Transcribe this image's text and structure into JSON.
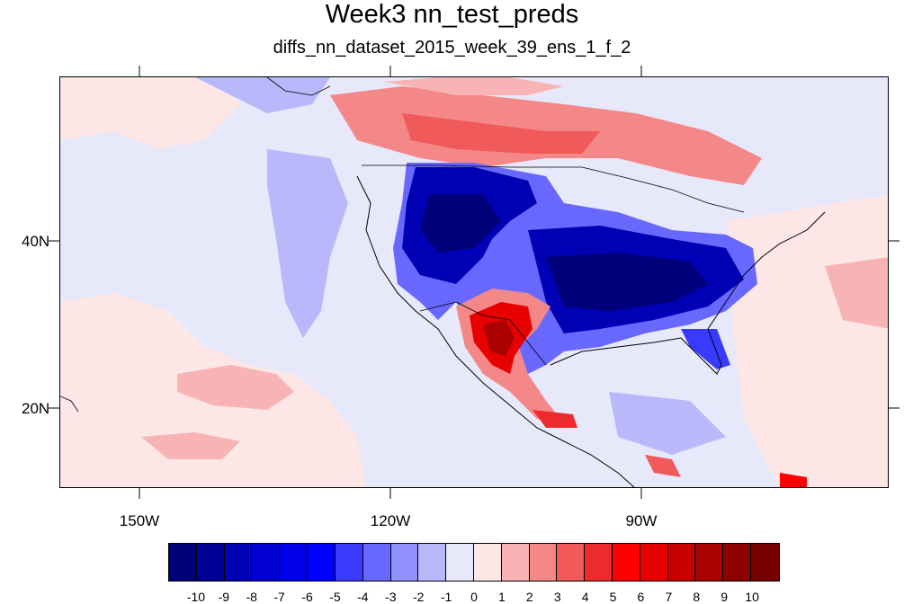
{
  "title": "Week3 nn_test_preds",
  "subtitle": "diffs_nn_dataset_2015_week_39_ens_1_f_2",
  "lat_labels": [
    "40N",
    "20N"
  ],
  "lon_labels": [
    "150W",
    "120W",
    "90W"
  ],
  "colorbar": {
    "labels": [
      "-10",
      "-9",
      "-8",
      "-7",
      "-6",
      "-5",
      "-4",
      "-3",
      "-2",
      "-1",
      "0",
      "1",
      "2",
      "3",
      "4",
      "5",
      "6",
      "7",
      "8",
      "9",
      "10"
    ],
    "colors": [
      "#00007a",
      "#000096",
      "#0000b4",
      "#0000d2",
      "#0000e8",
      "#0000ff",
      "#3a3aff",
      "#6868ff",
      "#9090ff",
      "#b8b8fb",
      "#e8e8fb",
      "#fce6e6",
      "#f8b4b4",
      "#f48888",
      "#f05a5a",
      "#ec2c2c",
      "#ff0000",
      "#e60000",
      "#c80000",
      "#aa0000",
      "#8c0000",
      "#780000"
    ]
  },
  "map": {
    "region": "North America and eastern Pacific",
    "field": "diffs",
    "lon_range": [
      -160,
      -62
    ],
    "lat_range": [
      10,
      59
    ]
  }
}
